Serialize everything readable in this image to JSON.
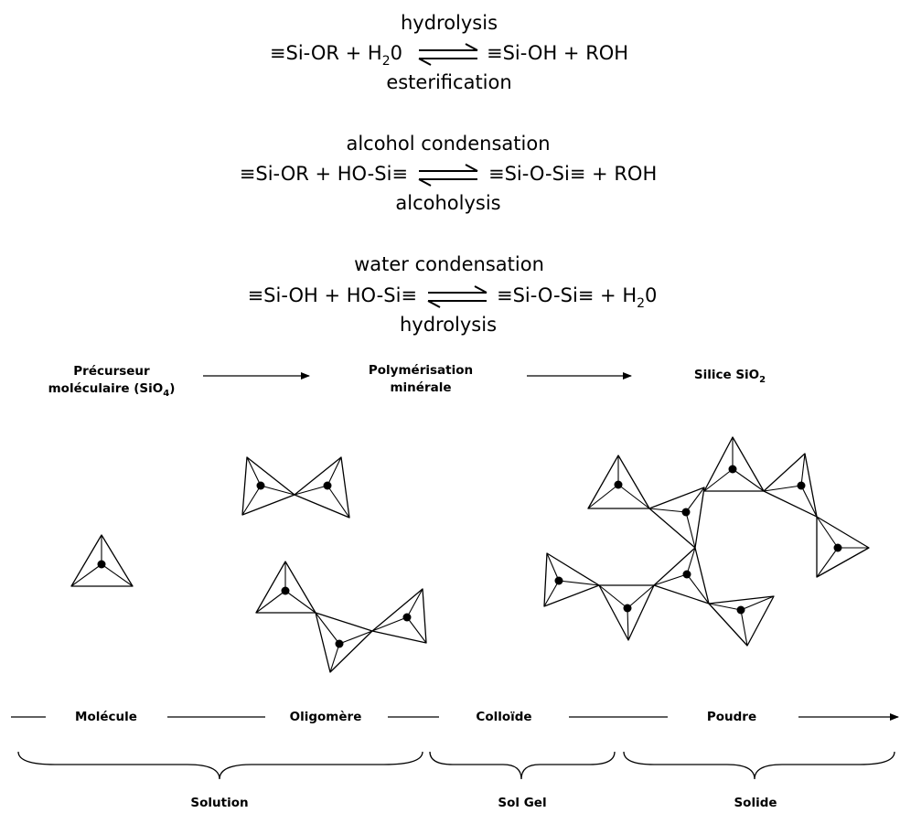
{
  "reactions": [
    {
      "top": "hydrolysis",
      "bottom": "esterification",
      "left_parts": [
        "≡Si-OR + H",
        "2",
        "0"
      ],
      "right": "≡Si-OH + ROH"
    },
    {
      "top": "alcohol condensation",
      "bottom": "alcoholysis",
      "left": "≡Si-OR + HO-Si≡",
      "right": "≡Si-O-Si≡ + ROH"
    },
    {
      "top": "water condensation",
      "bottom": "hydrolysis",
      "left": "≡Si-OH + HO-Si≡",
      "right_parts": [
        "≡Si-O-Si≡ + H",
        "2",
        "0"
      ]
    }
  ],
  "stages": {
    "precursor": {
      "line1": "Précurseur",
      "line2_parts": [
        "moléculaire (SiO",
        "4",
        ")"
      ]
    },
    "polymerisation": {
      "line1": "Polymérisation",
      "line2": "minérale"
    },
    "silica": {
      "parts": [
        "Silice SiO",
        "2"
      ]
    }
  },
  "scale": [
    "Molécule",
    "Oligomère",
    "Colloïde",
    "Poudre"
  ],
  "states": [
    "Solution",
    "Sol Gel",
    "Solide"
  ]
}
